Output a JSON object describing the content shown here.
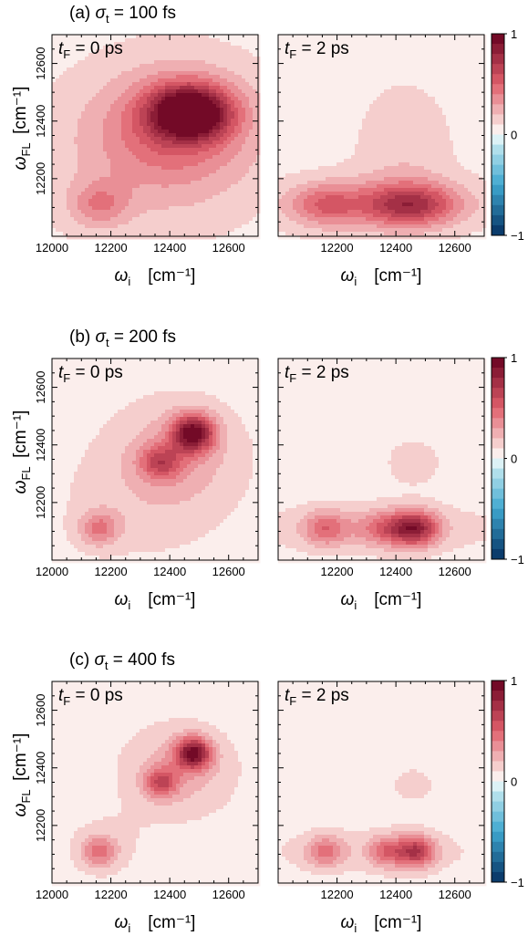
{
  "figure": {
    "panel_label_suffix": " = ",
    "colorbar_ticks": [
      "1",
      "0",
      "−1"
    ],
    "colorbar_values": [
      1,
      0,
      -1
    ],
    "colors": {
      "positive_max": "#67001f",
      "positive_mid": "#e0606c",
      "positive_low": "#f9e4e1",
      "zero": "#ffffff",
      "negative_low": "#c7eaf0",
      "negative_mid": "#3fa7cf",
      "negative_max": "#053061",
      "plot_background": "#f9eeec"
    },
    "rows": [
      {
        "label_prefix": "(a) ",
        "sigma_symbol": "σ",
        "sigma_subscript": "t",
        "sigma_value": "100 fs",
        "left_panel": "t_F = 0 ps",
        "right_panel": "t_F = 2 ps"
      },
      {
        "label_prefix": "(b) ",
        "sigma_symbol": "σ",
        "sigma_subscript": "t",
        "sigma_value": "200 fs",
        "left_panel": "t_F = 0 ps",
        "right_panel": "t_F = 2 ps"
      },
      {
        "label_prefix": "(c) ",
        "sigma_symbol": "σ",
        "sigma_subscript": "t",
        "sigma_value": "400 fs",
        "left_panel": "t_F = 0 ps",
        "right_panel": "t_F = 2 ps"
      }
    ]
  },
  "chart_data": {
    "type": "heatmap",
    "subplot_grid": [
      3,
      2
    ],
    "x_axis": {
      "symbol": "ω",
      "subscript": "i",
      "unit": "[cm⁻¹]",
      "range": [
        12000,
        12700
      ],
      "ticks": [
        12000,
        12200,
        12400,
        12600
      ],
      "tick_labels": [
        "12000",
        "12200",
        "12400",
        "12600"
      ],
      "tick_labels_right_panel": [
        "12200",
        "12400",
        "12600"
      ]
    },
    "y_axis": {
      "symbol": "ω",
      "subscript": "FL",
      "unit": "[cm⁻¹]",
      "range": [
        12000,
        12700
      ],
      "ticks": [
        12200,
        12400,
        12600
      ],
      "tick_labels": [
        "12200",
        "12400",
        "12600"
      ]
    },
    "color_scale": {
      "min": -1,
      "max": 1,
      "levels": 20
    },
    "panels": [
      {
        "row": 0,
        "col": 0,
        "t_F_ps": 0,
        "sigma_t_fs": 100,
        "background": 0.06,
        "peaks": [
          {
            "x": 12470,
            "y": 12430,
            "amp": 0.94,
            "sx": 95,
            "sy": 65
          },
          {
            "x": 12420,
            "y": 12380,
            "amp": 0.35,
            "sx": 190,
            "sy": 150
          },
          {
            "x": 12160,
            "y": 12110,
            "amp": 0.28,
            "sx": 70,
            "sy": 55
          },
          {
            "x": 12320,
            "y": 12260,
            "amp": 0.12,
            "sx": 260,
            "sy": 190
          }
        ]
      },
      {
        "row": 0,
        "col": 1,
        "t_F_ps": 2,
        "sigma_t_fs": 100,
        "background": 0.05,
        "peaks": [
          {
            "x": 12450,
            "y": 12110,
            "amp": 0.5,
            "sx": 110,
            "sy": 50
          },
          {
            "x": 12160,
            "y": 12110,
            "amp": 0.3,
            "sx": 80,
            "sy": 50
          },
          {
            "x": 12320,
            "y": 12110,
            "amp": 0.22,
            "sx": 260,
            "sy": 70
          },
          {
            "x": 12430,
            "y": 12300,
            "amp": 0.12,
            "sx": 120,
            "sy": 170
          }
        ]
      },
      {
        "row": 1,
        "col": 0,
        "t_F_ps": 0,
        "sigma_t_fs": 200,
        "background": 0.04,
        "peaks": [
          {
            "x": 12480,
            "y": 12440,
            "amp": 0.82,
            "sx": 50,
            "sy": 45
          },
          {
            "x": 12370,
            "y": 12340,
            "amp": 0.42,
            "sx": 50,
            "sy": 42
          },
          {
            "x": 12430,
            "y": 12380,
            "amp": 0.2,
            "sx": 150,
            "sy": 130
          },
          {
            "x": 12160,
            "y": 12110,
            "amp": 0.34,
            "sx": 48,
            "sy": 42
          },
          {
            "x": 12300,
            "y": 12200,
            "amp": 0.1,
            "sx": 220,
            "sy": 160
          }
        ]
      },
      {
        "row": 1,
        "col": 1,
        "t_F_ps": 2,
        "sigma_t_fs": 200,
        "background": 0.04,
        "peaks": [
          {
            "x": 12470,
            "y": 12110,
            "amp": 0.55,
            "sx": 55,
            "sy": 42
          },
          {
            "x": 12380,
            "y": 12110,
            "amp": 0.36,
            "sx": 75,
            "sy": 42
          },
          {
            "x": 12160,
            "y": 12110,
            "amp": 0.34,
            "sx": 52,
            "sy": 42
          },
          {
            "x": 12330,
            "y": 12110,
            "amp": 0.14,
            "sx": 320,
            "sy": 65
          },
          {
            "x": 12460,
            "y": 12340,
            "amp": 0.12,
            "sx": 70,
            "sy": 60
          }
        ]
      },
      {
        "row": 2,
        "col": 0,
        "t_F_ps": 0,
        "sigma_t_fs": 400,
        "background": 0.04,
        "peaks": [
          {
            "x": 12480,
            "y": 12450,
            "amp": 0.8,
            "sx": 42,
            "sy": 38
          },
          {
            "x": 12370,
            "y": 12350,
            "amp": 0.45,
            "sx": 38,
            "sy": 36
          },
          {
            "x": 12430,
            "y": 12390,
            "amp": 0.22,
            "sx": 130,
            "sy": 110
          },
          {
            "x": 12160,
            "y": 12110,
            "amp": 0.35,
            "sx": 42,
            "sy": 38
          },
          {
            "x": 12180,
            "y": 12130,
            "amp": 0.08,
            "sx": 110,
            "sy": 90
          }
        ]
      },
      {
        "row": 2,
        "col": 1,
        "t_F_ps": 2,
        "sigma_t_fs": 400,
        "background": 0.04,
        "peaks": [
          {
            "x": 12470,
            "y": 12110,
            "amp": 0.58,
            "sx": 45,
            "sy": 38
          },
          {
            "x": 12370,
            "y": 12110,
            "amp": 0.36,
            "sx": 45,
            "sy": 38
          },
          {
            "x": 12160,
            "y": 12110,
            "amp": 0.34,
            "sx": 45,
            "sy": 38
          },
          {
            "x": 12320,
            "y": 12110,
            "amp": 0.1,
            "sx": 300,
            "sy": 60
          },
          {
            "x": 12460,
            "y": 12340,
            "amp": 0.1,
            "sx": 60,
            "sy": 50
          }
        ]
      }
    ]
  }
}
